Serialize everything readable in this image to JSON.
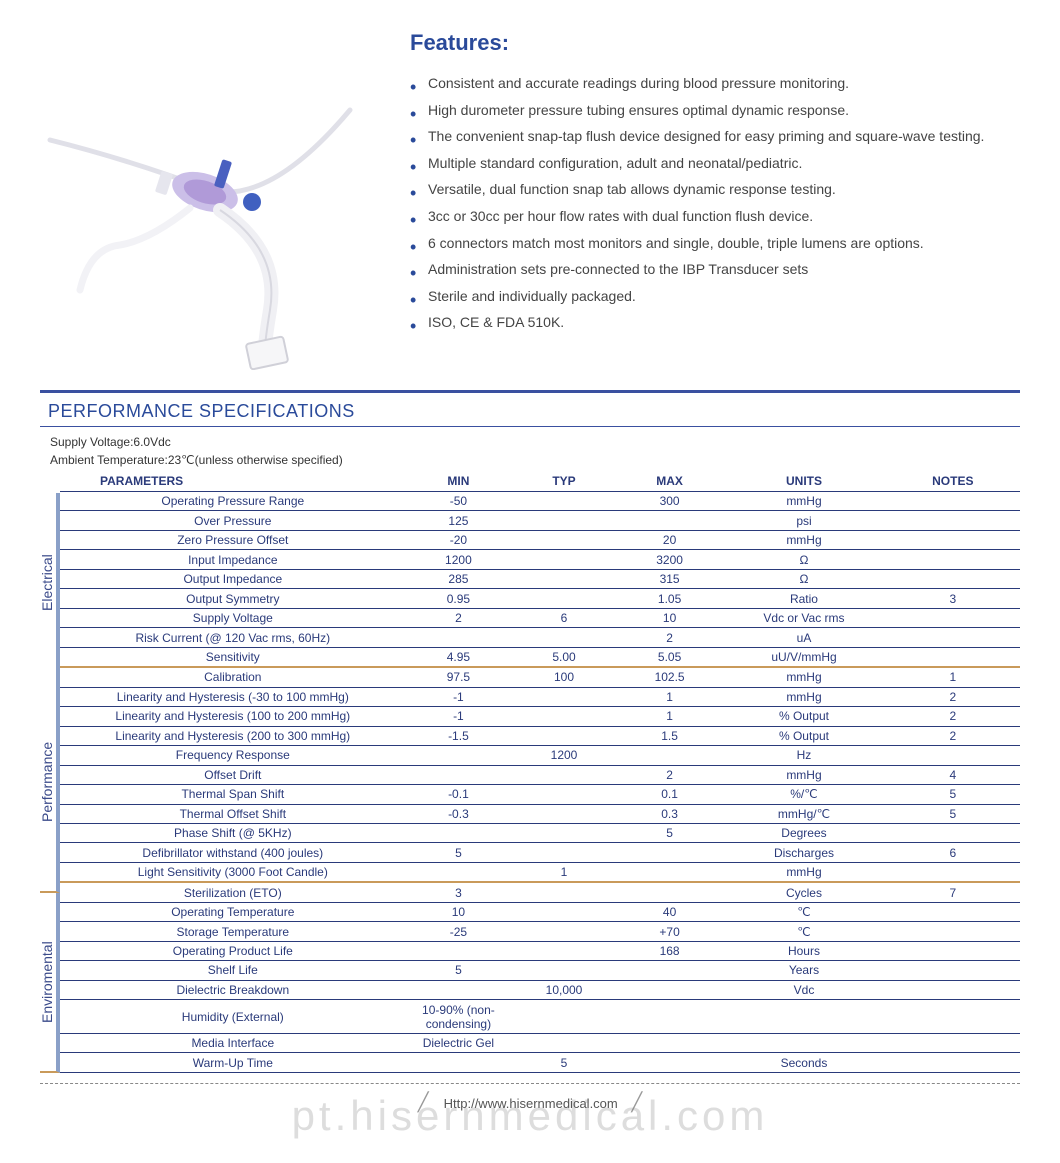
{
  "colors": {
    "brand_blue": "#2a4a9a",
    "rule_blue": "#3a50a0",
    "row_border": "#2a3a7a",
    "section_orange": "#c99a5a",
    "rail_border": "#8aa0c8",
    "text_gray": "#444444",
    "watermark": "rgba(120,120,120,0.25)"
  },
  "typography": {
    "features_title_fontsize": 22,
    "body_fontsize": 14,
    "table_fontsize": 12,
    "spec_title_fontsize": 18
  },
  "features": {
    "title": "Features:",
    "items": [
      "Consistent and accurate readings during blood pressure monitoring.",
      "High durometer pressure tubing ensures optimal dynamic response.",
      "The convenient snap-tap flush device designed for easy priming and square-wave testing.",
      "Multiple standard configuration, adult and neonatal/pediatric.",
      "Versatile, dual function snap tab allows dynamic response testing.",
      "3cc or 30cc per hour flow rates with dual function flush device.",
      "6 connectors match most monitors and single, double, triple lumens are options.",
      "Administration sets pre-connected to the IBP Transducer sets",
      "Sterile and individually packaged.",
      "ISO, CE & FDA 510K."
    ]
  },
  "spec": {
    "heading": "PERFORMANCE SPECIFICATIONS",
    "conditions": {
      "line1": "Supply Voltage:6.0Vdc",
      "line2": "Ambient Temperature:23℃(unless otherwise specified)"
    },
    "columns": [
      "PARAMETERS",
      "MIN",
      "TYP",
      "MAX",
      "UNITS",
      "NOTES"
    ],
    "sections": [
      {
        "label": "Electrical",
        "rows": [
          {
            "param": "Operating Pressure Range",
            "min": "-50",
            "typ": "",
            "max": "300",
            "units": "mmHg",
            "notes": ""
          },
          {
            "param": "Over  Pressure",
            "min": "125",
            "typ": "",
            "max": "",
            "units": "psi",
            "notes": ""
          },
          {
            "param": "Zero Pressure Offset",
            "min": "-20",
            "typ": "",
            "max": "20",
            "units": "mmHg",
            "notes": ""
          },
          {
            "param": "Input Impedance",
            "min": "1200",
            "typ": "",
            "max": "3200",
            "units": "Ω",
            "notes": ""
          },
          {
            "param": "Output Impedance",
            "min": "285",
            "typ": "",
            "max": "315",
            "units": "Ω",
            "notes": ""
          },
          {
            "param": "Output Symmetry",
            "min": "0.95",
            "typ": "",
            "max": "1.05",
            "units": "Ratio",
            "notes": "3"
          },
          {
            "param": "Supply Voltage",
            "min": "2",
            "typ": "6",
            "max": "10",
            "units": "Vdc or Vac rms",
            "notes": ""
          },
          {
            "param": "Risk Current (@ 120 Vac rms, 60Hz)",
            "min": "",
            "typ": "",
            "max": "2",
            "units": "uA",
            "notes": ""
          },
          {
            "param": "Sensitivity",
            "min": "4.95",
            "typ": "5.00",
            "max": "5.05",
            "units": "uU/V/mmHg",
            "notes": ""
          }
        ]
      },
      {
        "label": "Performance",
        "rows": [
          {
            "param": "Calibration",
            "min": "97.5",
            "typ": "100",
            "max": "102.5",
            "units": "mmHg",
            "notes": "1"
          },
          {
            "param": "Linearity and Hysteresis (-30 to 100 mmHg)",
            "min": "-1",
            "typ": "",
            "max": "1",
            "units": "mmHg",
            "notes": "2"
          },
          {
            "param": "Linearity and Hysteresis (100 to 200 mmHg)",
            "min": "-1",
            "typ": "",
            "max": "1",
            "units": "% Output",
            "notes": "2"
          },
          {
            "param": "Linearity and Hysteresis (200 to 300 mmHg)",
            "min": "-1.5",
            "typ": "",
            "max": "1.5",
            "units": "% Output",
            "notes": "2"
          },
          {
            "param": "Frequency Response",
            "min": "",
            "typ": "1200",
            "max": "",
            "units": "Hz",
            "notes": ""
          },
          {
            "param": "Offset Drift",
            "min": "",
            "typ": "",
            "max": "2",
            "units": "mmHg",
            "notes": "4"
          },
          {
            "param": "Thermal Span Shift",
            "min": "-0.1",
            "typ": "",
            "max": "0.1",
            "units": "%/℃",
            "notes": "5"
          },
          {
            "param": "Thermal Offset Shift",
            "min": "-0.3",
            "typ": "",
            "max": "0.3",
            "units": "mmHg/℃",
            "notes": "5"
          },
          {
            "param": "Phase Shift (@ 5KHz)",
            "min": "",
            "typ": "",
            "max": "5",
            "units": "Degrees",
            "notes": ""
          },
          {
            "param": "Defibrillator withstand (400 joules)",
            "min": "5",
            "typ": "",
            "max": "",
            "units": "Discharges",
            "notes": "6"
          },
          {
            "param": "Light Sensitivity (3000 Foot Candle)",
            "min": "",
            "typ": "1",
            "max": "",
            "units": "mmHg",
            "notes": ""
          }
        ]
      },
      {
        "label": "Enviromental",
        "rows": [
          {
            "param": "Sterilization (ETO)",
            "min": "3",
            "typ": "",
            "max": "",
            "units": "Cycles",
            "notes": "7"
          },
          {
            "param": "Operating Temperature",
            "min": "10",
            "typ": "",
            "max": "40",
            "units": "℃",
            "notes": ""
          },
          {
            "param": "Storage Temperature",
            "min": "-25",
            "typ": "",
            "max": "+70",
            "units": "℃",
            "notes": ""
          },
          {
            "param": "Operating Product Life",
            "min": "",
            "typ": "",
            "max": "168",
            "units": "Hours",
            "notes": ""
          },
          {
            "param": "Shelf Life",
            "min": "5",
            "typ": "",
            "max": "",
            "units": "Years",
            "notes": ""
          },
          {
            "param": "Dielectric Breakdown",
            "min": "",
            "typ": "10,000",
            "max": "",
            "units": "Vdc",
            "notes": ""
          },
          {
            "param": "Humidity (External)",
            "min": "10-90% (non-condensing)",
            "typ": "",
            "max": "",
            "units": "",
            "notes": ""
          },
          {
            "param": "Media Interface",
            "min": "Dielectric Gel",
            "typ": "",
            "max": "",
            "units": "",
            "notes": ""
          },
          {
            "param": "Warm-Up Time",
            "min": "",
            "typ": "5",
            "max": "",
            "units": "Seconds",
            "notes": ""
          }
        ]
      }
    ]
  },
  "footer": {
    "url": "Http://www.hisernmedical.com",
    "watermark": "pt.hisernmedical.com"
  },
  "image": {
    "description": "product-photo-ibp-transducer",
    "tube_color": "#e8e8ee",
    "body_color": "#b8a8e0",
    "accent_blue": "#4060c0",
    "connector_color": "#f4f4f6"
  }
}
